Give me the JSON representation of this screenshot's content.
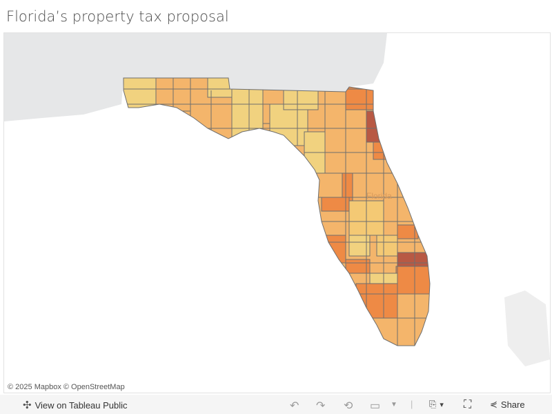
{
  "title": "Florida’s property tax proposal",
  "map": {
    "region_label": "Florida",
    "attribution": "© 2025 Mapbox  © OpenStreetMap",
    "colors": {
      "low": "#f1d27f",
      "mid": "#f4b56b",
      "high": "#ee8a45",
      "top": "#b85944",
      "land": "#e6e7e8",
      "border": "#6e6e6e"
    }
  },
  "toolbar": {
    "view_label": "View on Tableau Public",
    "share_label": "Share",
    "icons": [
      "tableau-logo-icon",
      "undo-icon",
      "redo-icon",
      "revert-icon",
      "refresh-icon",
      "download-icon",
      "fullscreen-icon",
      "share-icon"
    ]
  }
}
